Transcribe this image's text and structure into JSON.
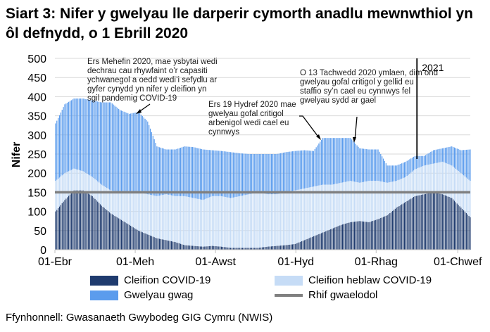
{
  "title": "Siart 3: Nifer y gwelyau lle darperir cymorth anadlu mewnwthiol yn ôl defnydd, o 1 Ebrill 2020",
  "source": "Ffynhonnell: Gwasanaeth Gwybodeg GIG Cymru (NWIS)",
  "chart_data": {
    "type": "bar",
    "stacked": true,
    "title": "Siart 3: Nifer y gwelyau lle darperir cymorth anadlu mewnwthiol yn ôl defnydd, o 1 Ebrill 2020",
    "ylabel": "Nifer",
    "xlabel": "",
    "ylim": [
      0,
      500
    ],
    "yticks": [
      "0",
      "50",
      "100",
      "150",
      "200",
      "250",
      "300",
      "350",
      "400",
      "450",
      "500"
    ],
    "xticks": [
      {
        "label": "01-Ebr",
        "date": "2020-04-01"
      },
      {
        "label": "01-Meh",
        "date": "2020-06-01"
      },
      {
        "label": "01-Awst",
        "date": "2020-08-01"
      },
      {
        "label": "01-Hyd",
        "date": "2020-10-01"
      },
      {
        "label": "01-Rhag",
        "date": "2020-12-01"
      },
      {
        "label": "01-Chwef",
        "date": "2021-02-01"
      }
    ],
    "xrange": [
      "2020-04-01",
      "2021-02-10"
    ],
    "grid": true,
    "legend_position": "bottom",
    "dates": [
      "2020-04-01",
      "2020-04-08",
      "2020-04-15",
      "2020-04-22",
      "2020-04-29",
      "2020-05-06",
      "2020-05-13",
      "2020-05-20",
      "2020-05-27",
      "2020-06-03",
      "2020-06-10",
      "2020-06-17",
      "2020-06-24",
      "2020-07-01",
      "2020-07-08",
      "2020-07-15",
      "2020-07-22",
      "2020-07-29",
      "2020-08-05",
      "2020-08-12",
      "2020-08-19",
      "2020-08-26",
      "2020-09-02",
      "2020-09-09",
      "2020-09-16",
      "2020-09-23",
      "2020-09-30",
      "2020-10-07",
      "2020-10-14",
      "2020-10-21",
      "2020-10-28",
      "2020-11-04",
      "2020-11-11",
      "2020-11-18",
      "2020-11-25",
      "2020-12-02",
      "2020-12-09",
      "2020-12-16",
      "2020-12-23",
      "2020-12-30",
      "2021-01-06",
      "2021-01-13",
      "2021-01-20",
      "2021-01-27",
      "2021-02-03",
      "2021-02-10"
    ],
    "series": [
      {
        "name": "Cleifion COVID-19",
        "color": "#1f3b6e",
        "values": [
          100,
          130,
          155,
          155,
          140,
          115,
          95,
          80,
          65,
          50,
          40,
          30,
          25,
          20,
          12,
          10,
          8,
          10,
          8,
          5,
          5,
          5,
          5,
          8,
          10,
          12,
          15,
          25,
          35,
          45,
          55,
          65,
          72,
          75,
          72,
          80,
          90,
          110,
          125,
          140,
          145,
          150,
          145,
          135,
          110,
          85
        ]
      },
      {
        "name": "Cleifion heblaw COVID-19",
        "color": "#c6dcf6",
        "values": [
          80,
          70,
          57,
          50,
          50,
          55,
          60,
          70,
          85,
          100,
          105,
          110,
          120,
          120,
          128,
          125,
          122,
          130,
          132,
          130,
          135,
          140,
          145,
          137,
          135,
          138,
          140,
          135,
          130,
          125,
          115,
          110,
          108,
          100,
          108,
          100,
          85,
          70,
          65,
          70,
          75,
          75,
          85,
          85,
          90,
          95
        ]
      },
      {
        "name": "Gwelyau gwag",
        "color": "#5b9ced",
        "values": [
          150,
          180,
          183,
          190,
          200,
          215,
          230,
          215,
          205,
          210,
          190,
          130,
          117,
          122,
          130,
          133,
          132,
          120,
          118,
          120,
          112,
          105,
          100,
          105,
          105,
          105,
          103,
          100,
          93,
          122,
          122,
          117,
          112,
          90,
          82,
          82,
          45,
          40,
          40,
          35,
          25,
          35,
          35,
          50,
          60,
          82
        ]
      }
    ],
    "baseline": {
      "name": "Rhif gwaelodol",
      "value": 150,
      "color": "#808080"
    },
    "annotations": [
      {
        "text": "Ers Mehefin 2020, mae ysbytai wedi dechrau cau rhywfaint o’r capasiti ychwanegol a oedd wedi’i sefydlu ar gyfer cynydd yn nifer y cleifion yn sgil pandemig COVID-19",
        "date": "2020-06-01"
      },
      {
        "text": "Ers 19 Hydref 2020 mae gwelyau gofal critigol arbenigol wedi cael eu cynnwys",
        "date": "2020-10-19"
      },
      {
        "text": "O 13 Tachwedd 2020 ymlaen, dim ond gwelyau gofal critigol y gellid eu staffio sy’n cael eu cynnwys fel gwelyau sydd ar gael",
        "date": "2020-11-13"
      },
      {
        "text": "2021",
        "date": "2021-01-01"
      }
    ]
  }
}
